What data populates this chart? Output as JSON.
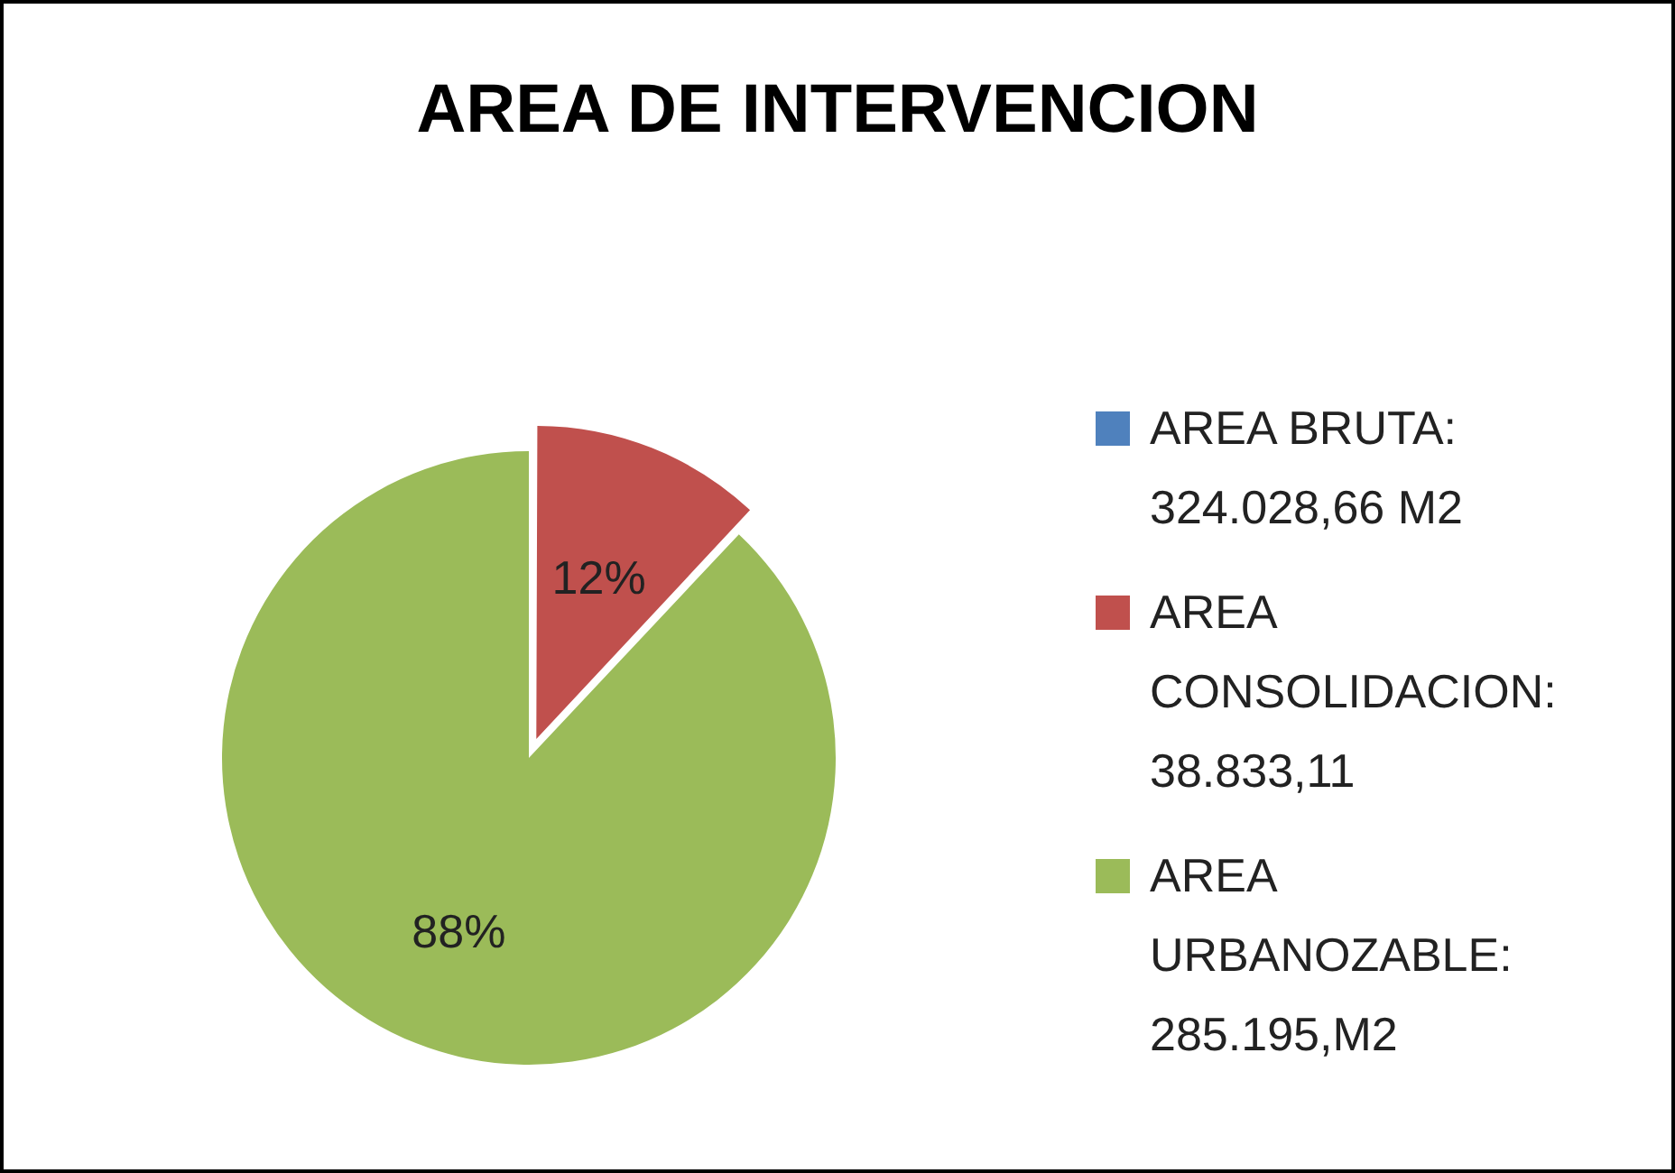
{
  "chart_data": {
    "type": "pie",
    "title": "AREA DE INTERVENCION",
    "categories": [
      "AREA BRUTA: 324.028,66 M2",
      "AREA CONSOLIDACION: 38.833,11",
      "AREA URBANOZABLE: 285.195,M2"
    ],
    "values": [
      0,
      12,
      88
    ],
    "colors": [
      "#4f81bd",
      "#c0504d",
      "#9bbb59"
    ],
    "value_labels": [
      null,
      "12%",
      "88%"
    ],
    "legend": "right"
  }
}
